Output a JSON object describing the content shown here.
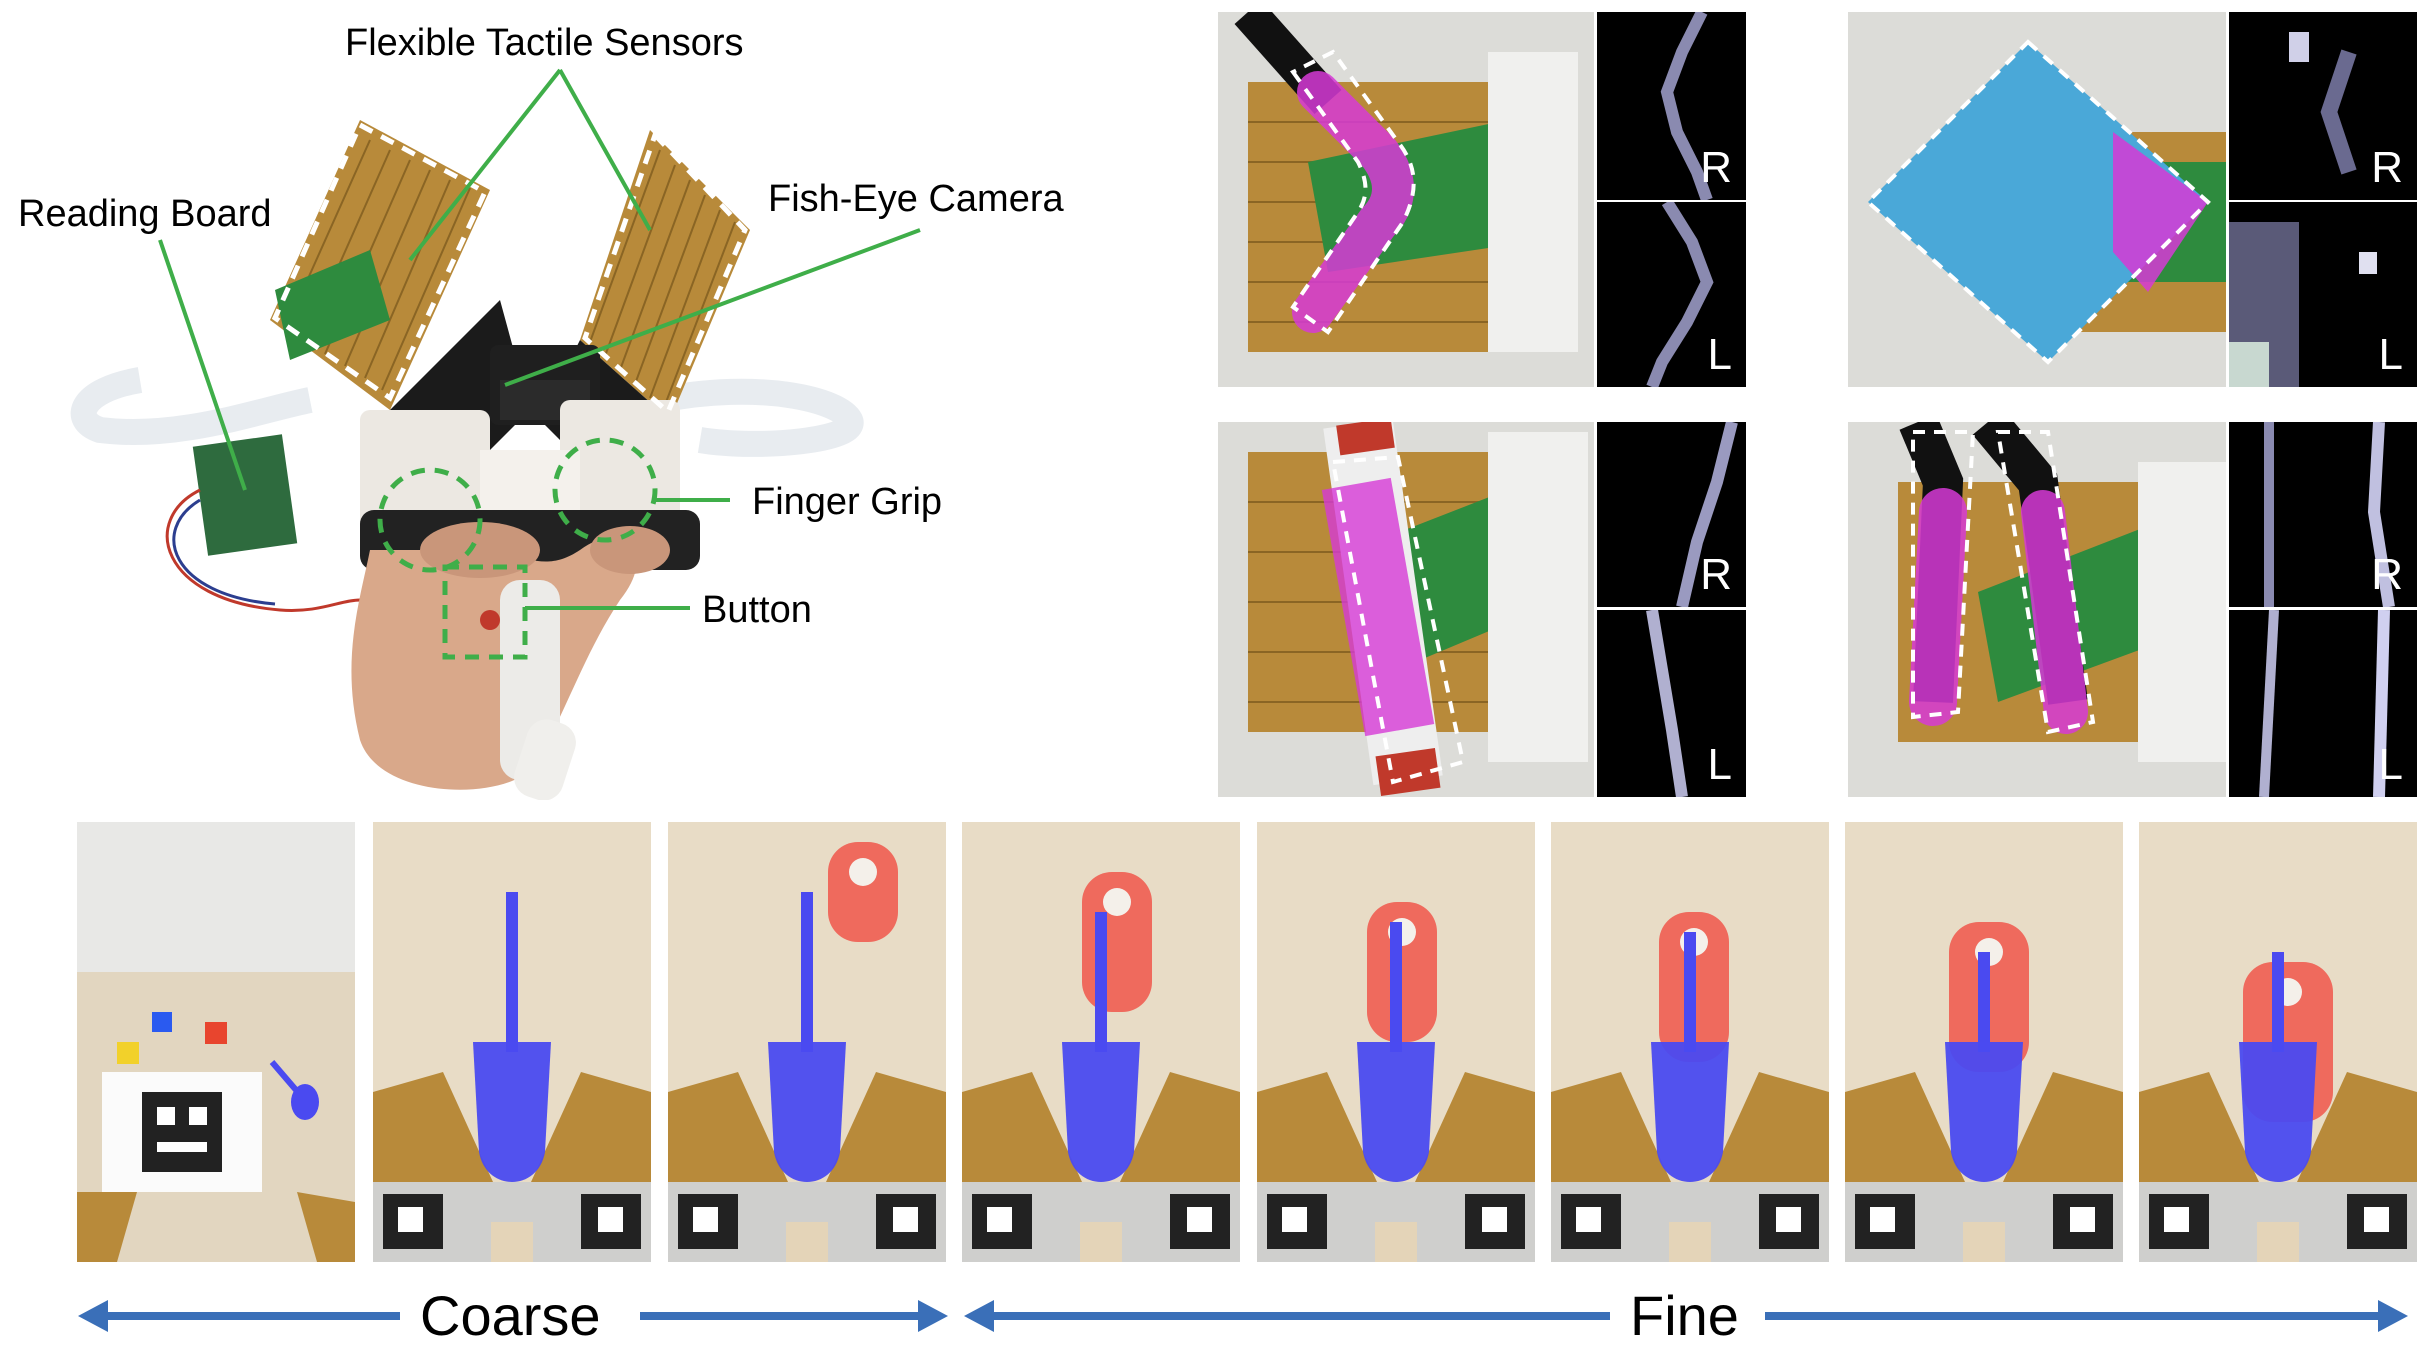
{
  "labels": {
    "flexible_tactile_sensors": "Flexible Tactile Sensors",
    "reading_board": "Reading Board",
    "fish_eye_camera": "Fish-Eye Camera",
    "finger_grip": "Finger Grip",
    "button": "Button"
  },
  "tactile_labels": {
    "right": "R",
    "left": "L"
  },
  "timeline": {
    "coarse": "Coarse",
    "fine": "Fine"
  },
  "colors": {
    "callout_green": "#3fae49",
    "arrow_blue": "#3a6fb8",
    "object_magenta": "#d63ad6",
    "tool_blue": "#4a4af0",
    "target_red": "#f0564a",
    "board_green": "#2e8b3e",
    "sensor_gold": "#b88a3a"
  }
}
